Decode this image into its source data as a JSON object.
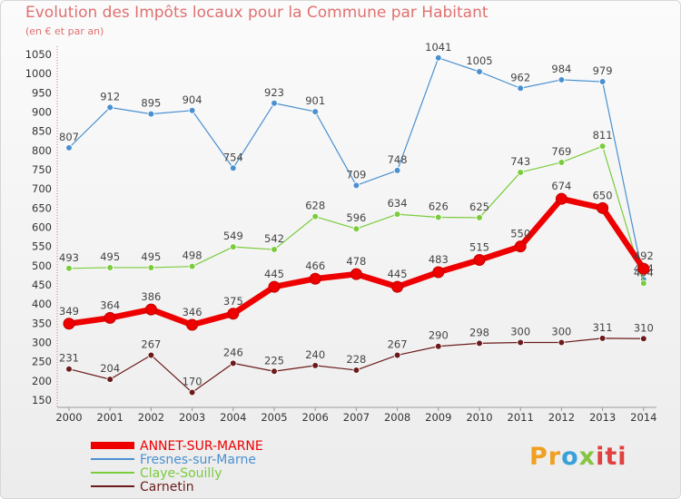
{
  "chart_data": {
    "type": "line",
    "title": "Evolution des Impôts locaux pour la Commune par Habitant",
    "subtitle": "(en € et par an)",
    "categories": [
      "2000",
      "2001",
      "2002",
      "2003",
      "2004",
      "2005",
      "2006",
      "2007",
      "2008",
      "2009",
      "2010",
      "2011",
      "2012",
      "2013",
      "2014"
    ],
    "ylim": [
      150,
      1050
    ],
    "yticks": [
      150,
      200,
      250,
      300,
      350,
      400,
      450,
      500,
      550,
      600,
      650,
      700,
      750,
      800,
      850,
      900,
      950,
      1000,
      1050
    ],
    "grid": false,
    "legend_position": "bottom-left",
    "series": [
      {
        "name": "ANNET-SUR-MARNE",
        "color": "#ee0000",
        "values": [
          349,
          364,
          386,
          346,
          375,
          445,
          466,
          478,
          445,
          483,
          515,
          550,
          674,
          650,
          492
        ]
      },
      {
        "name": "Fresnes-sur-Marne",
        "color": "#4a90d0",
        "values": [
          807,
          912,
          895,
          904,
          754,
          923,
          901,
          709,
          748,
          1041,
          1005,
          962,
          984,
          979,
          464
        ]
      },
      {
        "name": "Claye-Souilly",
        "color": "#7acc3c",
        "values": [
          493,
          495,
          495,
          498,
          549,
          542,
          628,
          596,
          634,
          626,
          625,
          743,
          769,
          811,
          454
        ]
      },
      {
        "name": "Carnetin",
        "color": "#6b1b1b",
        "values": [
          231,
          204,
          267,
          170,
          246,
          225,
          240,
          228,
          267,
          290,
          298,
          300,
          300,
          311,
          310
        ]
      }
    ]
  },
  "logo_text": [
    "Pr",
    "o",
    "x",
    "iti"
  ]
}
